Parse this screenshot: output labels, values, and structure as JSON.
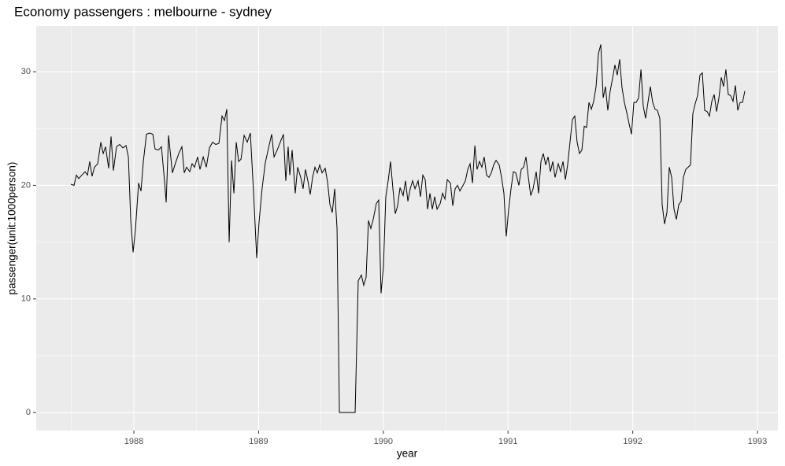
{
  "chart_data": {
    "type": "line",
    "title": "Economy passengers : melbourne - sydney",
    "x_label": "year",
    "y_label": "passenger(unit:1000person)",
    "color": "#000000",
    "grid": true,
    "minor_grid": true,
    "xlim": [
      1987.217,
      1993.164
    ],
    "ylim": [
      -1.59,
      34.03
    ],
    "xticks": [
      1988,
      1989,
      1990,
      1991,
      1992,
      1993
    ],
    "yticks": [
      0,
      10,
      20,
      30
    ],
    "x": [
      1987.495,
      1987.52,
      1987.539,
      1987.558,
      1987.583,
      1987.609,
      1987.628,
      1987.646,
      1987.665,
      1987.684,
      1987.71,
      1987.735,
      1987.754,
      1987.773,
      1987.798,
      1987.817,
      1987.836,
      1987.861,
      1987.886,
      1987.912,
      1987.937,
      1987.956,
      1987.975,
      1987.994,
      1988.013,
      1988.038,
      1988.057,
      1988.076,
      1988.101,
      1988.126,
      1988.152,
      1988.17,
      1988.196,
      1988.221,
      1988.24,
      1988.259,
      1988.278,
      1988.29,
      1988.309,
      1988.335,
      1988.36,
      1988.385,
      1988.404,
      1988.423,
      1988.448,
      1988.467,
      1988.486,
      1988.511,
      1988.53,
      1988.556,
      1988.581,
      1988.606,
      1988.631,
      1988.657,
      1988.682,
      1988.707,
      1988.726,
      1988.745,
      1988.764,
      1988.783,
      1988.802,
      1988.821,
      1988.84,
      1988.859,
      1988.884,
      1988.909,
      1988.934,
      1988.96,
      1988.985,
      1989.004,
      1989.029,
      1989.054,
      1989.08,
      1989.105,
      1989.124,
      1989.149,
      1989.174,
      1989.199,
      1989.218,
      1989.237,
      1989.25,
      1989.269,
      1989.294,
      1989.313,
      1989.338,
      1989.357,
      1989.376,
      1989.395,
      1989.414,
      1989.433,
      1989.452,
      1989.471,
      1989.49,
      1989.509,
      1989.534,
      1989.553,
      1989.572,
      1989.591,
      1989.61,
      1989.629,
      1989.648,
      1989.679,
      1989.711,
      1989.742,
      1989.774,
      1989.799,
      1989.824,
      1989.843,
      1989.862,
      1989.881,
      1989.9,
      1989.919,
      1989.944,
      1989.963,
      1989.982,
      1990.001,
      1990.02,
      1990.039,
      1990.058,
      1990.077,
      1990.096,
      1990.115,
      1990.134,
      1990.159,
      1990.178,
      1990.197,
      1990.216,
      1990.235,
      1990.254,
      1990.279,
      1990.298,
      1990.317,
      1990.336,
      1990.355,
      1990.374,
      1990.393,
      1990.412,
      1990.431,
      1990.456,
      1990.475,
      1990.494,
      1990.513,
      1990.538,
      1990.557,
      1990.576,
      1990.595,
      1990.614,
      1990.639,
      1990.658,
      1990.677,
      1990.696,
      1990.715,
      1990.734,
      1990.752,
      1990.771,
      1990.79,
      1990.809,
      1990.828,
      1990.847,
      1990.866,
      1990.885,
      1990.904,
      1990.929,
      1990.948,
      1990.967,
      1990.986,
      1991.005,
      1991.024,
      1991.043,
      1991.062,
      1991.087,
      1991.106,
      1991.125,
      1991.144,
      1991.163,
      1991.182,
      1991.201,
      1991.226,
      1991.245,
      1991.264,
      1991.283,
      1991.302,
      1991.321,
      1991.34,
      1991.359,
      1991.377,
      1991.403,
      1991.422,
      1991.441,
      1991.46,
      1991.478,
      1991.497,
      1991.516,
      1991.535,
      1991.554,
      1991.573,
      1991.592,
      1991.611,
      1991.63,
      1991.649,
      1991.668,
      1991.687,
      1991.706,
      1991.725,
      1991.744,
      1991.763,
      1991.781,
      1991.8,
      1991.819,
      1991.838,
      1991.857,
      1991.876,
      1991.895,
      1991.914,
      1991.933,
      1991.952,
      1991.971,
      1991.99,
      1992.009,
      1992.028,
      1992.047,
      1992.066,
      1992.084,
      1992.103,
      1992.122,
      1992.141,
      1992.16,
      1992.179,
      1992.198,
      1992.217,
      1992.236,
      1992.255,
      1992.274,
      1992.293,
      1992.312,
      1992.331,
      1992.35,
      1992.369,
      1992.388,
      1992.406,
      1992.425,
      1992.444,
      1992.463,
      1992.482,
      1992.501,
      1992.52,
      1992.539,
      1992.558,
      1992.577,
      1992.596,
      1992.615,
      1992.634,
      1992.653,
      1992.672,
      1992.691,
      1992.71,
      1992.728,
      1992.747,
      1992.766,
      1992.785,
      1992.804,
      1992.823,
      1992.842,
      1992.861,
      1992.88,
      1992.899
    ],
    "values": [
      20.1,
      20.0,
      20.9,
      20.6,
      20.9,
      21.2,
      20.9,
      22.1,
      20.8,
      21.6,
      21.9,
      23.8,
      22.8,
      23.4,
      21.5,
      24.3,
      21.3,
      23.4,
      23.6,
      23.3,
      23.5,
      22.5,
      16.9,
      14.1,
      16.2,
      20.2,
      19.5,
      22.1,
      24.5,
      24.6,
      24.5,
      23.2,
      23.1,
      23.4,
      21.1,
      18.5,
      24.4,
      23.1,
      21.1,
      22.0,
      22.8,
      23.4,
      21.1,
      21.6,
      21.2,
      21.9,
      21.6,
      22.5,
      21.4,
      22.5,
      21.6,
      23.3,
      23.8,
      23.6,
      23.7,
      26.1,
      25.7,
      26.7,
      15.0,
      22.2,
      19.3,
      23.8,
      22.1,
      22.3,
      24.4,
      23.8,
      24.6,
      19.3,
      13.6,
      16.8,
      19.8,
      22.0,
      23.3,
      24.5,
      22.5,
      23.1,
      23.8,
      24.5,
      20.4,
      23.4,
      20.9,
      23.1,
      19.3,
      21.6,
      20.7,
      19.7,
      21.4,
      20.4,
      19.2,
      20.7,
      21.6,
      21.1,
      21.8,
      21.1,
      21.5,
      20.3,
      18.3,
      17.6,
      19.7,
      16.2,
      0,
      0,
      0,
      0,
      0,
      11.6,
      12.1,
      11.2,
      11.9,
      16.9,
      16.2,
      17.0,
      18.4,
      18.7,
      10.5,
      12.8,
      19.0,
      20.4,
      22.1,
      19.7,
      17.5,
      18.2,
      19.8,
      19.1,
      20.4,
      18.6,
      19.7,
      20.4,
      19.7,
      20.4,
      19.0,
      20.9,
      20.5,
      17.9,
      19.3,
      17.9,
      19.0,
      17.9,
      18.4,
      19.3,
      18.8,
      20.5,
      20.2,
      18.2,
      19.7,
      20.0,
      19.5,
      20.0,
      20.4,
      21.4,
      21.9,
      20.2,
      23.5,
      21.4,
      22.1,
      21.6,
      22.5,
      20.9,
      20.7,
      21.1,
      21.8,
      22.2,
      21.8,
      20.7,
      19.3,
      15.5,
      17.9,
      19.7,
      21.2,
      21.1,
      20.0,
      21.4,
      21.6,
      22.5,
      20.7,
      19.1,
      19.7,
      21.2,
      19.3,
      22.1,
      22.8,
      21.8,
      22.5,
      21.2,
      22.1,
      20.7,
      21.9,
      21.2,
      22.1,
      20.5,
      21.8,
      23.8,
      25.8,
      26.1,
      23.8,
      22.8,
      23.1,
      25.2,
      25.1,
      27.3,
      26.7,
      27.4,
      28.7,
      31.6,
      32.4,
      27.7,
      28.7,
      26.6,
      28.3,
      29.4,
      30.6,
      29.7,
      31.1,
      28.6,
      27.3,
      26.4,
      25.4,
      24.5,
      27.3,
      27.3,
      27.7,
      30.2,
      27.0,
      25.9,
      27.3,
      28.7,
      27.3,
      26.7,
      26.6,
      25.9,
      18.3,
      16.6,
      17.6,
      21.6,
      20.7,
      17.9,
      17.0,
      18.3,
      18.6,
      20.7,
      21.4,
      21.6,
      21.8,
      26.3,
      27.2,
      27.9,
      29.7,
      29.9,
      26.6,
      26.5,
      26.1,
      27.4,
      28.0,
      26.5,
      27.7,
      29.5,
      28.7,
      30.2,
      28.0,
      27.9,
      27.4,
      28.8,
      26.6,
      27.3,
      27.3,
      28.3
    ]
  }
}
